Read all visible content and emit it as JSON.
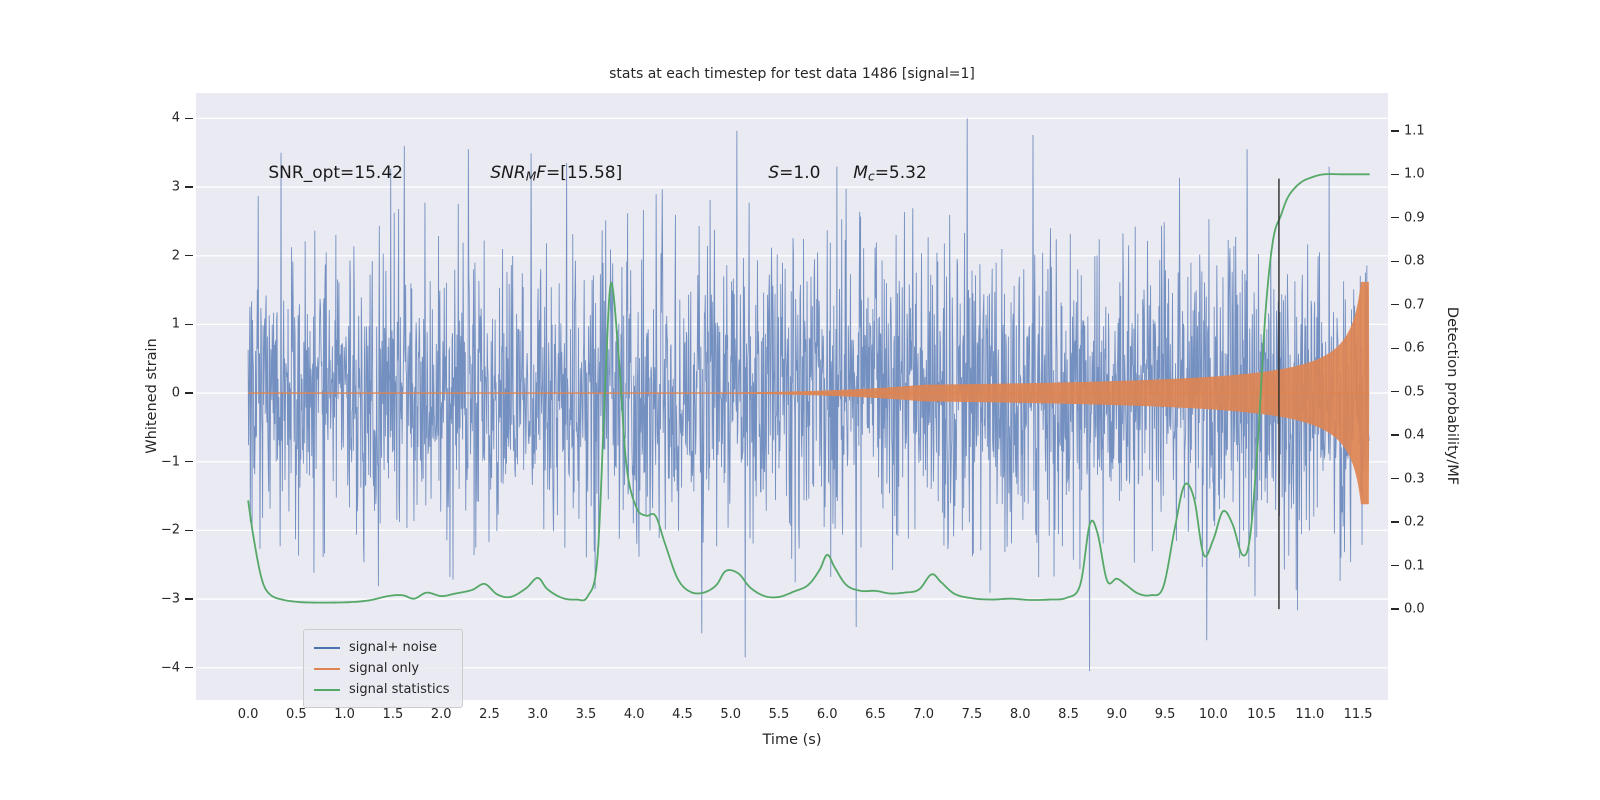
{
  "chart_data": {
    "type": "line",
    "title": "stats at each timestep for test data 1486 [signal=1]",
    "xlabel": "Time (s)",
    "ylabel_left": "Whitened strain",
    "ylabel_right": "Detection probability/MF",
    "plot_bg": "#eaeaf2",
    "grid_color": "#ffffff",
    "xlim": [
      -0.54,
      11.81
    ],
    "ylim_left": [
      -4.47,
      4.37
    ],
    "ylim_right": [
      -0.209,
      1.187
    ],
    "x_ticks": [
      {
        "v": 0.0,
        "label": "0.0"
      },
      {
        "v": 0.5,
        "label": "0.5"
      },
      {
        "v": 1.0,
        "label": "1.0"
      },
      {
        "v": 1.5,
        "label": "1.5"
      },
      {
        "v": 2.0,
        "label": "2.0"
      },
      {
        "v": 2.5,
        "label": "2.5"
      },
      {
        "v": 3.0,
        "label": "3.0"
      },
      {
        "v": 3.5,
        "label": "3.5"
      },
      {
        "v": 4.0,
        "label": "4.0"
      },
      {
        "v": 4.5,
        "label": "4.5"
      },
      {
        "v": 5.0,
        "label": "5.0"
      },
      {
        "v": 5.5,
        "label": "5.5"
      },
      {
        "v": 6.0,
        "label": "6.0"
      },
      {
        "v": 6.5,
        "label": "6.5"
      },
      {
        "v": 7.0,
        "label": "7.0"
      },
      {
        "v": 7.5,
        "label": "7.5"
      },
      {
        "v": 8.0,
        "label": "8.0"
      },
      {
        "v": 8.5,
        "label": "8.5"
      },
      {
        "v": 9.0,
        "label": "9.0"
      },
      {
        "v": 9.5,
        "label": "9.5"
      },
      {
        "v": 10.0,
        "label": "10.0"
      },
      {
        "v": 10.5,
        "label": "10.5"
      },
      {
        "v": 11.0,
        "label": "11.0"
      },
      {
        "v": 11.5,
        "label": "11.5"
      }
    ],
    "y_ticks_left": [
      {
        "v": -4,
        "label": "−4"
      },
      {
        "v": -3,
        "label": "−3"
      },
      {
        "v": -2,
        "label": "−2"
      },
      {
        "v": -1,
        "label": "−1"
      },
      {
        "v": 0,
        "label": "0"
      },
      {
        "v": 1,
        "label": "1"
      },
      {
        "v": 2,
        "label": "2"
      },
      {
        "v": 3,
        "label": "3"
      },
      {
        "v": 4,
        "label": "4"
      }
    ],
    "y_ticks_right": [
      {
        "v": 0.0,
        "label": "0.0"
      },
      {
        "v": 0.1,
        "label": "0.1"
      },
      {
        "v": 0.2,
        "label": "0.2"
      },
      {
        "v": 0.3,
        "label": "0.3"
      },
      {
        "v": 0.4,
        "label": "0.4"
      },
      {
        "v": 0.5,
        "label": "0.5"
      },
      {
        "v": 0.6,
        "label": "0.6"
      },
      {
        "v": 0.7,
        "label": "0.7"
      },
      {
        "v": 0.8,
        "label": "0.8"
      },
      {
        "v": 0.9,
        "label": "0.9"
      },
      {
        "v": 1.0,
        "label": "1.0"
      },
      {
        "v": 1.1,
        "label": "1.1"
      }
    ],
    "annotations": [
      {
        "t": 0.21,
        "y": 3.2,
        "parts": [
          {
            "text": "SNR_opt=15.42"
          }
        ]
      },
      {
        "t": 2.51,
        "y": 3.2,
        "parts": [
          {
            "text": "SNR",
            "italic": true
          },
          {
            "text": "M",
            "italic": true,
            "sub": true
          },
          {
            "text": "F",
            "italic": true
          },
          {
            "text": "=[15.58]"
          }
        ]
      },
      {
        "t": 5.39,
        "y": 3.2,
        "parts": [
          {
            "text": "S",
            "italic": true
          },
          {
            "text": "=1.0"
          }
        ]
      },
      {
        "t": 6.27,
        "y": 3.2,
        "parts": [
          {
            "text": "M",
            "italic": true
          },
          {
            "text": "c",
            "italic": true,
            "sub": true
          },
          {
            "text": "=5.32"
          }
        ]
      }
    ],
    "legend": [
      {
        "label": "signal+ noise",
        "color": "#4c72b0"
      },
      {
        "label": "signal only",
        "color": "#dd8452"
      },
      {
        "label": "signal statistics",
        "color": "#55a868"
      }
    ],
    "series": {
      "signal_noise": {
        "label": "signal+ noise",
        "color": "#4c72b0",
        "alpha": 0.75,
        "t_start": 0.0,
        "t_end": 11.62,
        "samples_per_sec": 220,
        "std": 1.06,
        "seed": 1486,
        "spikes": [
          [
            0.34,
            3.5
          ],
          [
            1.62,
            3.6
          ],
          [
            2.28,
            3.55
          ],
          [
            3.3,
            3.35
          ],
          [
            4.7,
            -3.5
          ],
          [
            5.15,
            -3.85
          ],
          [
            6.1,
            3.3
          ],
          [
            7.45,
            4.0
          ],
          [
            8.72,
            -4.05
          ],
          [
            9.93,
            -3.6
          ],
          [
            10.35,
            3.55
          ],
          [
            11.2,
            3.3
          ],
          [
            11.68,
            -3.4
          ]
        ]
      },
      "signal_only": {
        "label": "signal only",
        "color": "#dd8452",
        "baseline": 0.0,
        "merger_time": 11.615,
        "peak_amplitude": 1.62,
        "envelope": {
          "k": 0.328,
          "alpha": 0.65,
          "ramp_start": 3.5,
          "ramp_end": 7.0,
          "ramp_pow": 3
        }
      },
      "signal_statistics": {
        "label": "signal statistics",
        "color": "#55a868",
        "points": [
          [
            0.0,
            0.25
          ],
          [
            0.06,
            0.16
          ],
          [
            0.14,
            0.07
          ],
          [
            0.22,
            0.035
          ],
          [
            0.35,
            0.022
          ],
          [
            0.55,
            0.016
          ],
          [
            0.8,
            0.015
          ],
          [
            1.05,
            0.016
          ],
          [
            1.25,
            0.02
          ],
          [
            1.45,
            0.03
          ],
          [
            1.6,
            0.032
          ],
          [
            1.72,
            0.024
          ],
          [
            1.85,
            0.038
          ],
          [
            2.0,
            0.03
          ],
          [
            2.15,
            0.036
          ],
          [
            2.32,
            0.044
          ],
          [
            2.45,
            0.058
          ],
          [
            2.58,
            0.034
          ],
          [
            2.72,
            0.028
          ],
          [
            2.88,
            0.048
          ],
          [
            3.0,
            0.072
          ],
          [
            3.1,
            0.046
          ],
          [
            3.25,
            0.026
          ],
          [
            3.4,
            0.022
          ],
          [
            3.52,
            0.03
          ],
          [
            3.62,
            0.12
          ],
          [
            3.7,
            0.52
          ],
          [
            3.76,
            0.75
          ],
          [
            3.84,
            0.58
          ],
          [
            3.92,
            0.33
          ],
          [
            4.02,
            0.235
          ],
          [
            4.12,
            0.215
          ],
          [
            4.22,
            0.215
          ],
          [
            4.32,
            0.15
          ],
          [
            4.45,
            0.07
          ],
          [
            4.58,
            0.04
          ],
          [
            4.72,
            0.038
          ],
          [
            4.85,
            0.055
          ],
          [
            4.95,
            0.088
          ],
          [
            5.08,
            0.082
          ],
          [
            5.2,
            0.05
          ],
          [
            5.35,
            0.03
          ],
          [
            5.5,
            0.028
          ],
          [
            5.65,
            0.04
          ],
          [
            5.8,
            0.055
          ],
          [
            5.92,
            0.09
          ],
          [
            6.0,
            0.125
          ],
          [
            6.08,
            0.095
          ],
          [
            6.2,
            0.055
          ],
          [
            6.35,
            0.042
          ],
          [
            6.5,
            0.042
          ],
          [
            6.65,
            0.036
          ],
          [
            6.8,
            0.038
          ],
          [
            6.95,
            0.045
          ],
          [
            7.08,
            0.08
          ],
          [
            7.18,
            0.062
          ],
          [
            7.32,
            0.035
          ],
          [
            7.5,
            0.025
          ],
          [
            7.7,
            0.022
          ],
          [
            7.9,
            0.024
          ],
          [
            8.1,
            0.021
          ],
          [
            8.3,
            0.022
          ],
          [
            8.48,
            0.026
          ],
          [
            8.62,
            0.055
          ],
          [
            8.72,
            0.195
          ],
          [
            8.8,
            0.175
          ],
          [
            8.9,
            0.065
          ],
          [
            9.0,
            0.07
          ],
          [
            9.1,
            0.055
          ],
          [
            9.22,
            0.036
          ],
          [
            9.35,
            0.032
          ],
          [
            9.48,
            0.05
          ],
          [
            9.6,
            0.185
          ],
          [
            9.7,
            0.285
          ],
          [
            9.8,
            0.255
          ],
          [
            9.9,
            0.125
          ],
          [
            10.0,
            0.16
          ],
          [
            10.1,
            0.225
          ],
          [
            10.2,
            0.195
          ],
          [
            10.3,
            0.125
          ],
          [
            10.38,
            0.165
          ],
          [
            10.46,
            0.38
          ],
          [
            10.54,
            0.68
          ],
          [
            10.62,
            0.85
          ],
          [
            10.7,
            0.905
          ],
          [
            10.78,
            0.95
          ],
          [
            10.9,
            0.98
          ],
          [
            11.02,
            0.993
          ],
          [
            11.15,
            1.0
          ],
          [
            11.35,
            1.0
          ],
          [
            11.62,
            1.0
          ]
        ]
      },
      "marker_line": {
        "x": 10.68,
        "p_from": 0.0,
        "p_to": 0.99,
        "color": "#2b2b2b"
      }
    }
  }
}
